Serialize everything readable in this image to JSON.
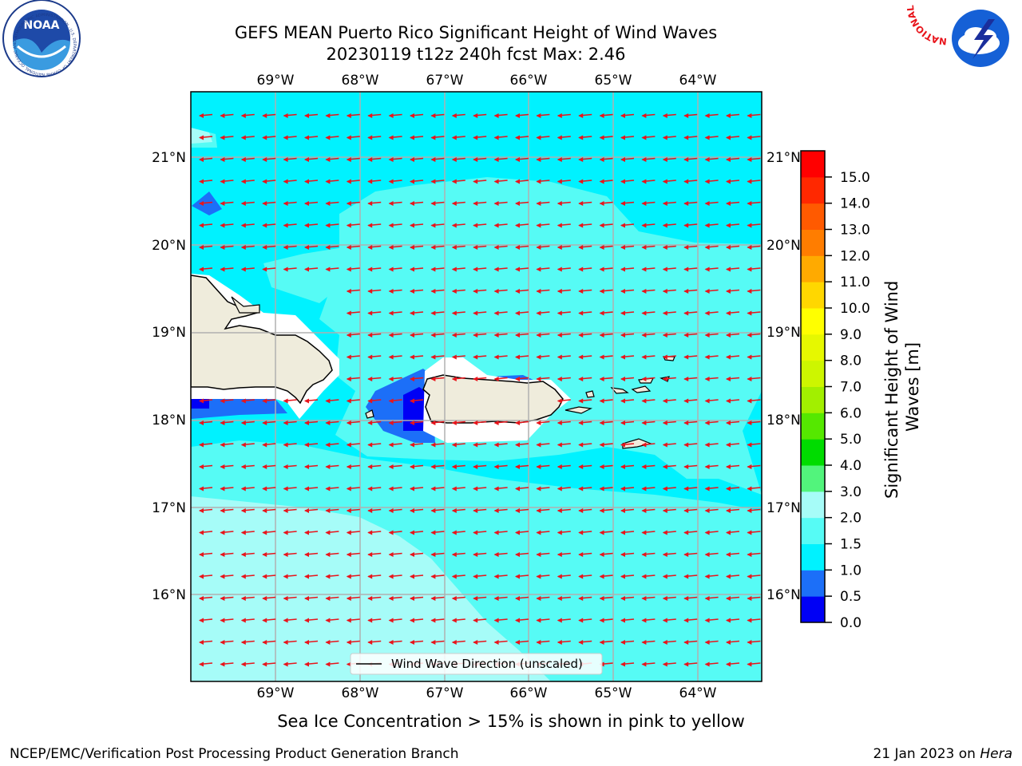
{
  "title": {
    "line1": "GEFS MEAN Puerto Rico Significant Height of Wind Waves",
    "line2": "20230119 t12z 240h fcst   Max: 2.46"
  },
  "map": {
    "lon_labels": [
      "69°W",
      "68°W",
      "67°W",
      "66°W",
      "65°W",
      "64°W"
    ],
    "lat_labels": [
      "21°N",
      "20°N",
      "19°N",
      "18°N",
      "17°N",
      "16°N"
    ],
    "lon_range": [
      -70.0,
      -63.3
    ],
    "lat_range": [
      15.05,
      21.75
    ]
  },
  "legend": {
    "label": "Wind Wave Direction (unscaled)"
  },
  "colorbar": {
    "label": "Significant Height of Wind Waves [m]",
    "ticks": [
      "0.0",
      "0.5",
      "1.0",
      "1.5",
      "2.0",
      "3.0",
      "4.0",
      "5.0",
      "6.0",
      "7.0",
      "8.0",
      "9.0",
      "10.0",
      "11.0",
      "12.0",
      "13.0",
      "14.0",
      "15.0"
    ],
    "colors": [
      "#0000f5",
      "#1c6ff8",
      "#00f2ff",
      "#56fbf5",
      "#a6fcf8",
      "#52f47c",
      "#00dc00",
      "#55e800",
      "#a2ef00",
      "#cdf600",
      "#e6f800",
      "#ffff00",
      "#ffd700",
      "#ffaa00",
      "#ff7d00",
      "#ff5a00",
      "#ff2800",
      "#ff0000"
    ]
  },
  "footer": {
    "note": "Sea Ice Concentration > 15% is shown in pink to yellow",
    "left": "NCEP/EMC/Verification Post Processing Product Generation Branch",
    "date": "21 Jan 2023 on ",
    "machine": "Hera"
  },
  "logos": {
    "noaa": {
      "text": "NOAA",
      "ring": "NATIONAL OCEANIC AND ATMOSPHERIC ADMINISTRATION · U.S. DEPARTMENT OF COMMERCE"
    },
    "nws": {
      "ring": "NATIONAL WEATHER SERVICE"
    }
  }
}
